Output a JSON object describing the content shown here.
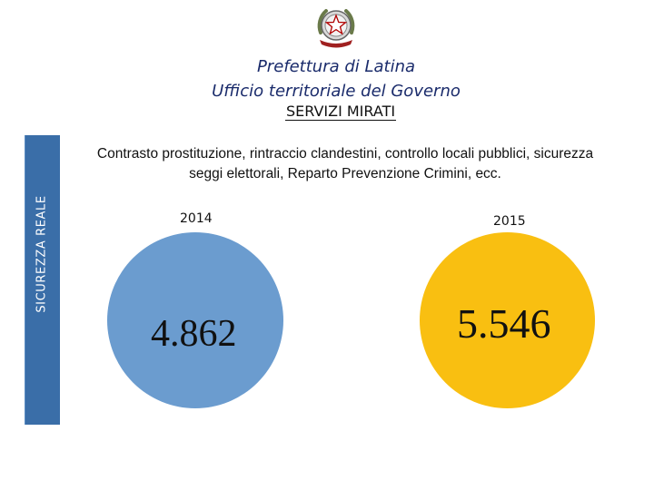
{
  "header": {
    "title_line1": "Prefettura di Latina",
    "title_line2": "Ufficio territoriale del Governo",
    "subtitle": "SERVIZI MIRATI",
    "emblem_icon": "italian-republic-emblem-icon"
  },
  "sidebar": {
    "label": "SICUREZZA REALE",
    "color": "#3a6ea8"
  },
  "description": "Contrasto prostituzione, rintraccio clandestini, controllo locali pubblici, sicurezza seggi elettorali, Reparto Prevenzione Crimini, ecc.",
  "stats": [
    {
      "year": "2014",
      "value": "4.862",
      "color": "#6b9ccf"
    },
    {
      "year": "2015",
      "value": "5.546",
      "color": "#f9bf11"
    }
  ]
}
